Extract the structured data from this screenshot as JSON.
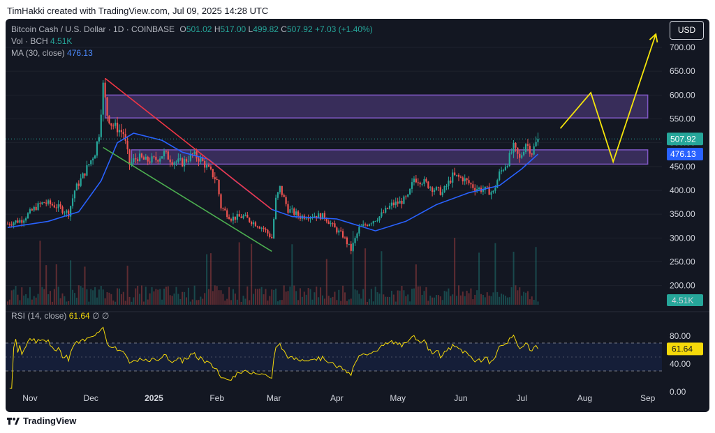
{
  "header": {
    "credit": "TimHakki created with TradingView.com, Jul 09, 2025 14:28 UTC",
    "brand": "TradingView"
  },
  "legend": {
    "symbol": "Bitcoin Cash / U.S. Dollar · 1D · COINBASE",
    "o_label": "O",
    "o_value": "501.02",
    "h_label": "H",
    "h_value": "517.00",
    "l_label": "L",
    "l_value": "499.82",
    "c_label": "C",
    "c_value": "507.92",
    "change": "+7.03 (+1.40%)",
    "vol_label": "Vol · BCH",
    "vol_value": "4.51K",
    "ma_label": "MA (30, close)",
    "ma_value": "476.13",
    "rsi_label": "RSI (14, close)",
    "rsi_value": "61.64",
    "rsi_icons": "∅ ∅"
  },
  "currency_button": "USD",
  "colors": {
    "background": "#131722",
    "up": "#26a69a",
    "down": "#ef5350",
    "ma": "#2962ff",
    "rsi": "#f5d90a",
    "zone": "#7e57c2",
    "red_trend": "#f23645",
    "green_trend": "#4caf50",
    "projection": "#f5e50a"
  },
  "chart_data": [
    {
      "type": "candlestick",
      "title": "Bitcoin Cash / U.S. Dollar · 1D · COINBASE",
      "x_tick_labels": [
        "Nov",
        "Dec",
        "2025",
        "Feb",
        "Mar",
        "Apr",
        "May",
        "Jun",
        "Jul",
        "Aug",
        "Sep"
      ],
      "x_range": [
        "2024-10-20",
        "2025-09-08"
      ],
      "y_ticks": [
        200,
        250,
        300,
        350,
        400,
        450,
        500,
        550,
        600,
        650,
        700
      ],
      "y_tick_labels": [
        "200.00",
        "250.00",
        "300.00",
        "350.00",
        "400.00",
        "450.00",
        "500.00",
        "550.00",
        "600.00",
        "650.00",
        "700.00"
      ],
      "ylim": [
        160,
        760
      ],
      "last_price": 507.92,
      "last_price_label": "507.92",
      "ma_last_label": "476.13",
      "volume_last_label": "4.51K",
      "price_path": [
        [
          "2024-10-21",
          330
        ],
        [
          "2024-10-28",
          338
        ],
        [
          "2024-11-04",
          365
        ],
        [
          "2024-11-08",
          375
        ],
        [
          "2024-11-13",
          368
        ],
        [
          "2024-11-16",
          362
        ],
        [
          "2024-11-20",
          352
        ],
        [
          "2024-11-23",
          400
        ],
        [
          "2024-11-27",
          430
        ],
        [
          "2024-11-30",
          455
        ],
        [
          "2024-12-03",
          480
        ],
        [
          "2024-12-05",
          520
        ],
        [
          "2024-12-07",
          620
        ],
        [
          "2024-12-09",
          560
        ],
        [
          "2024-12-11",
          540
        ],
        [
          "2024-12-14",
          530
        ],
        [
          "2024-12-17",
          520
        ],
        [
          "2024-12-20",
          455
        ],
        [
          "2024-12-24",
          470
        ],
        [
          "2024-12-28",
          462
        ],
        [
          "2025-01-02",
          465
        ],
        [
          "2025-01-06",
          478
        ],
        [
          "2025-01-10",
          462
        ],
        [
          "2025-01-15",
          458
        ],
        [
          "2025-01-20",
          475
        ],
        [
          "2025-01-24",
          465
        ],
        [
          "2025-01-29",
          438
        ],
        [
          "2025-02-01",
          420
        ],
        [
          "2025-02-03",
          365
        ],
        [
          "2025-02-08",
          342
        ],
        [
          "2025-02-14",
          345
        ],
        [
          "2025-02-20",
          330
        ],
        [
          "2025-02-24",
          320
        ],
        [
          "2025-02-28",
          300
        ],
        [
          "2025-03-02",
          380
        ],
        [
          "2025-03-04",
          405
        ],
        [
          "2025-03-08",
          360
        ],
        [
          "2025-03-14",
          345
        ],
        [
          "2025-03-20",
          348
        ],
        [
          "2025-03-26",
          345
        ],
        [
          "2025-03-31",
          320
        ],
        [
          "2025-04-04",
          305
        ],
        [
          "2025-04-08",
          275
        ],
        [
          "2025-04-12",
          320
        ],
        [
          "2025-04-16",
          330
        ],
        [
          "2025-04-22",
          345
        ],
        [
          "2025-04-28",
          370
        ],
        [
          "2025-05-02",
          375
        ],
        [
          "2025-05-06",
          385
        ],
        [
          "2025-05-09",
          425
        ],
        [
          "2025-05-13",
          420
        ],
        [
          "2025-05-18",
          405
        ],
        [
          "2025-05-23",
          395
        ],
        [
          "2025-05-28",
          430
        ],
        [
          "2025-06-02",
          425
        ],
        [
          "2025-06-08",
          405
        ],
        [
          "2025-06-14",
          400
        ],
        [
          "2025-06-17",
          395
        ],
        [
          "2025-06-20",
          435
        ],
        [
          "2025-06-24",
          460
        ],
        [
          "2025-06-27",
          490
        ],
        [
          "2025-06-30",
          465
        ],
        [
          "2025-07-03",
          500
        ],
        [
          "2025-07-06",
          480
        ],
        [
          "2025-07-09",
          508
        ]
      ],
      "ma_path": [
        [
          "2024-10-21",
          322
        ],
        [
          "2024-11-10",
          335
        ],
        [
          "2024-11-25",
          355
        ],
        [
          "2024-12-06",
          420
        ],
        [
          "2024-12-14",
          500
        ],
        [
          "2024-12-22",
          520
        ],
        [
          "2025-01-05",
          505
        ],
        [
          "2025-01-15",
          480
        ],
        [
          "2025-01-28",
          465
        ],
        [
          "2025-02-10",
          420
        ],
        [
          "2025-02-28",
          360
        ],
        [
          "2025-03-10",
          345
        ],
        [
          "2025-04-01",
          340
        ],
        [
          "2025-04-20",
          315
        ],
        [
          "2025-05-05",
          335
        ],
        [
          "2025-05-20",
          370
        ],
        [
          "2025-06-05",
          395
        ],
        [
          "2025-06-20",
          410
        ],
        [
          "2025-07-01",
          445
        ],
        [
          "2025-07-09",
          476
        ]
      ],
      "resistance_zone": {
        "from": 552,
        "to": 600,
        "start": "2024-12-08",
        "end": "2025-09-01"
      },
      "support_zone": {
        "from": 455,
        "to": 485,
        "start": "2024-12-21",
        "end": "2025-09-01"
      },
      "red_trendline": [
        [
          "2024-12-08",
          635
        ],
        [
          "2025-02-28",
          360
        ]
      ],
      "green_trendline": [
        [
          "2024-12-07",
          490
        ],
        [
          "2025-02-28",
          272
        ]
      ],
      "projection_path": [
        [
          "2025-07-20",
          530
        ],
        [
          "2025-08-04",
          605
        ],
        [
          "2025-08-15",
          460
        ],
        [
          "2025-09-05",
          728
        ]
      ]
    },
    {
      "type": "line",
      "title": "RSI (14, close)",
      "y_ticks": [
        0,
        40,
        80
      ],
      "y_tick_labels": [
        "0.00",
        "40.00",
        "80.00"
      ],
      "ylim": [
        -5,
        105
      ],
      "band": [
        30,
        70
      ],
      "last_value": 61.64,
      "last_value_label": "61.64"
    }
  ]
}
